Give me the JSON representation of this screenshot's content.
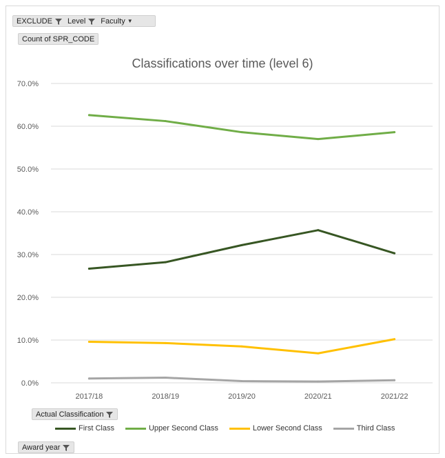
{
  "filters": {
    "exclude": "EXCLUDE",
    "level": "Level",
    "faculty": "Faculty"
  },
  "value_field": "Count of SPR_CODE",
  "axis_field": "Actual Classification",
  "category_field": "Award year",
  "icons": {
    "filter": "filter-icon",
    "dropdown": "chevron-down-icon"
  },
  "chart_data": {
    "type": "line",
    "title": "Classifications over time (level 6)",
    "categories": [
      "2017/18",
      "2018/19",
      "2019/20",
      "2020/21",
      "2021/22"
    ],
    "ylim": [
      0,
      70
    ],
    "yticks": [
      "0.0%",
      "10.0%",
      "20.0%",
      "30.0%",
      "40.0%",
      "50.0%",
      "60.0%",
      "70.0%"
    ],
    "ytick_values": [
      0,
      10,
      20,
      30,
      40,
      50,
      60,
      70
    ],
    "grid": true,
    "legend_position": "bottom",
    "series": [
      {
        "name": "First Class",
        "color": "#375623",
        "values": [
          26.7,
          28.2,
          32.2,
          35.7,
          30.3
        ]
      },
      {
        "name": "Upper Second Class",
        "color": "#70ad47",
        "values": [
          62.6,
          61.2,
          58.6,
          57.0,
          58.6
        ]
      },
      {
        "name": "Lower Second Class",
        "color": "#ffc000",
        "values": [
          9.6,
          9.3,
          8.5,
          6.9,
          10.2
        ]
      },
      {
        "name": "Third Class",
        "color": "#a5a5a5",
        "values": [
          1.0,
          1.2,
          0.4,
          0.3,
          0.6
        ]
      }
    ]
  }
}
